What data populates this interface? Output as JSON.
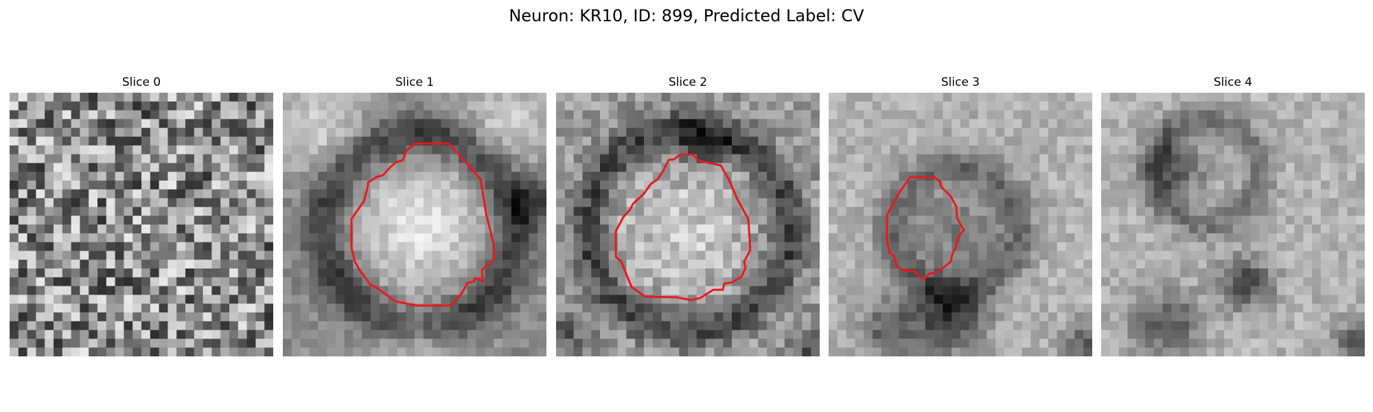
{
  "figure": {
    "title": "Neuron: KR10, ID: 899, Predicted Label: CV"
  },
  "panels": [
    {
      "title": "Slice 0",
      "roi_outline": false
    },
    {
      "title": "Slice 1",
      "roi_outline": true
    },
    {
      "title": "Slice 2",
      "roi_outline": true
    },
    {
      "title": "Slice 3",
      "roi_outline": true
    },
    {
      "title": "Slice 4",
      "roi_outline": false
    }
  ],
  "colors": {
    "roi_outline": "#e8191e",
    "image_colormap": "grayscale"
  }
}
